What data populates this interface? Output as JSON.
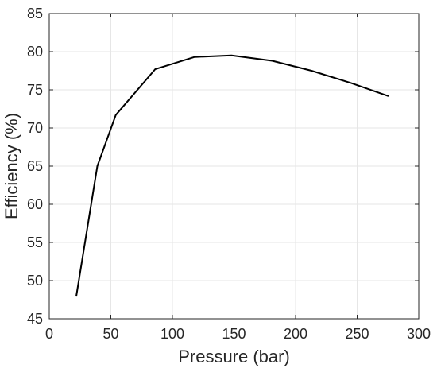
{
  "chart_data": {
    "type": "line",
    "title": "",
    "xlabel": "Pressure (bar)",
    "ylabel": "Efficiency (%)",
    "xlim": [
      0,
      300
    ],
    "ylim": [
      45,
      85
    ],
    "xticks": [
      0,
      50,
      100,
      150,
      200,
      250,
      300
    ],
    "yticks": [
      45,
      50,
      55,
      60,
      65,
      70,
      75,
      80,
      85
    ],
    "grid": true,
    "box": true,
    "series": [
      {
        "color": "#000000",
        "x": [
          22,
          39,
          54,
          86,
          118,
          148,
          181,
          213,
          245,
          275
        ],
        "y": [
          48.0,
          65.0,
          71.7,
          77.7,
          79.3,
          79.5,
          78.8,
          77.5,
          75.9,
          74.2
        ]
      }
    ]
  }
}
